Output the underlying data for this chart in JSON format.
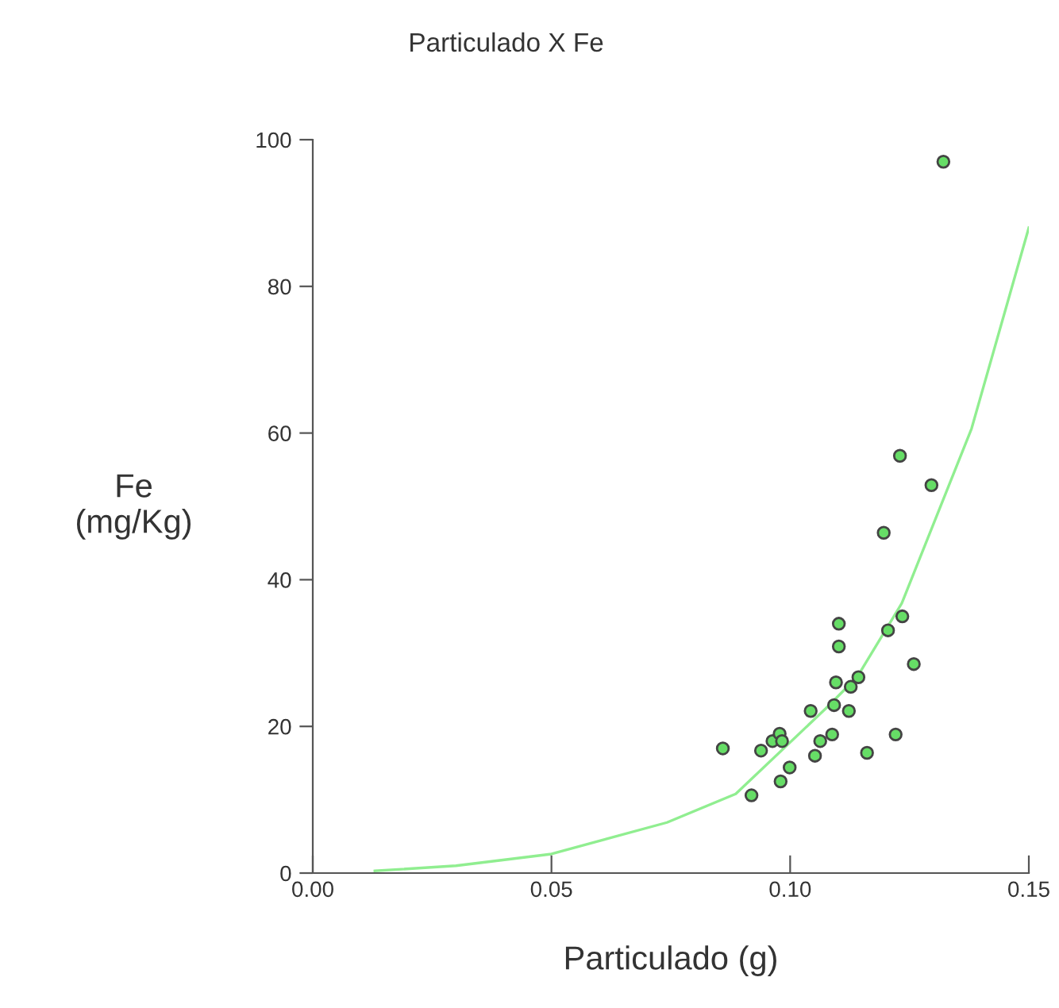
{
  "chart_data": {
    "type": "scatter",
    "title": "Particulado X Fe",
    "xlabel": "Particulado (g)",
    "ylabel": "Fe\n(mg/Kg)",
    "xlim": [
      0,
      0.15
    ],
    "ylim": [
      0,
      100
    ],
    "xticks": [
      {
        "value": 0,
        "label": "0.00"
      },
      {
        "value": 0.05,
        "label": "0.05"
      },
      {
        "value": 0.1,
        "label": "0.10"
      },
      {
        "value": 0.15,
        "label": "0.15"
      }
    ],
    "yticks": [
      0,
      20,
      40,
      60,
      80,
      100
    ],
    "grid": false,
    "legend": false,
    "series": [
      {
        "type": "line",
        "marker": "none",
        "color": "#90ee90",
        "x": [
          0.013,
          0.03,
          0.05,
          0.0742,
          0.0886,
          0.1074,
          0.114,
          0.1234,
          0.138,
          0.15
        ],
        "values": [
          0.3,
          1.0,
          2.6,
          6.9,
          10.8,
          22.4,
          26.7,
          36.8,
          60.6,
          88
        ]
      },
      {
        "marker": "circle",
        "color": "#66dd66",
        "x": [
          0.123,
          0.1296,
          0.1196,
          0.1102,
          0.1235,
          0.1205,
          0.1102,
          0.1259,
          0.1096,
          0.1143,
          0.1127,
          0.1043,
          0.1092,
          0.1123,
          0.0859,
          0.0939,
          0.0963,
          0.0978,
          0.0983,
          0.1088,
          0.1063,
          0.1052,
          0.0999,
          0.098,
          0.0919,
          0.1161,
          0.1221,
          0.1321
        ],
        "values": [
          56.9,
          52.9,
          46.4,
          34.0,
          35.0,
          33.1,
          30.9,
          28.5,
          26.0,
          26.7,
          25.4,
          22.1,
          22.9,
          22.1,
          17.0,
          16.7,
          18.0,
          19.0,
          18.0,
          18.9,
          18.0,
          16.0,
          14.4,
          12.5,
          10.6,
          16.4,
          18.9,
          97.0
        ]
      }
    ]
  }
}
